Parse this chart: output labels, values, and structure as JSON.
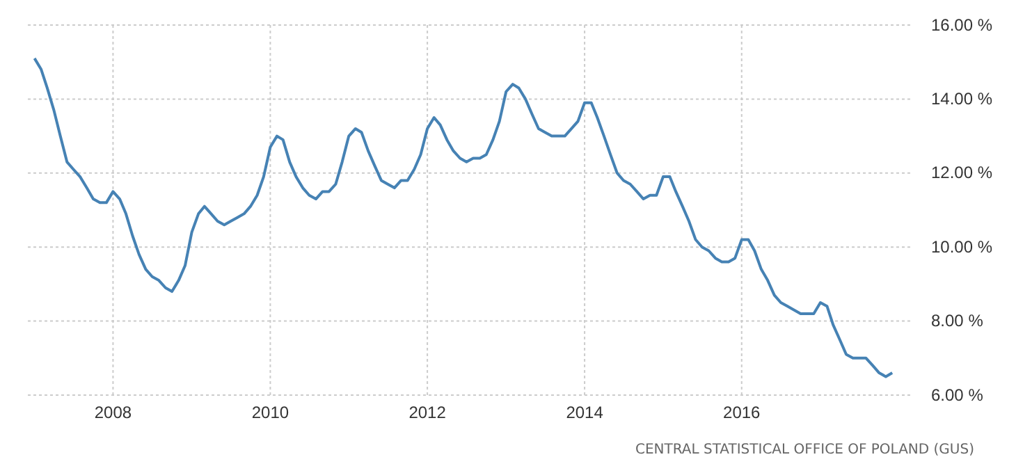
{
  "chart_data": {
    "type": "line",
    "x": [
      "2007-01",
      "2007-02",
      "2007-03",
      "2007-04",
      "2007-05",
      "2007-06",
      "2007-07",
      "2007-08",
      "2007-09",
      "2007-10",
      "2007-11",
      "2007-12",
      "2008-01",
      "2008-02",
      "2008-03",
      "2008-04",
      "2008-05",
      "2008-06",
      "2008-07",
      "2008-08",
      "2008-09",
      "2008-10",
      "2008-11",
      "2008-12",
      "2009-01",
      "2009-02",
      "2009-03",
      "2009-04",
      "2009-05",
      "2009-06",
      "2009-07",
      "2009-08",
      "2009-09",
      "2009-10",
      "2009-11",
      "2009-12",
      "2010-01",
      "2010-02",
      "2010-03",
      "2010-04",
      "2010-05",
      "2010-06",
      "2010-07",
      "2010-08",
      "2010-09",
      "2010-10",
      "2010-11",
      "2010-12",
      "2011-01",
      "2011-02",
      "2011-03",
      "2011-04",
      "2011-05",
      "2011-06",
      "2011-07",
      "2011-08",
      "2011-09",
      "2011-10",
      "2011-11",
      "2011-12",
      "2012-01",
      "2012-02",
      "2012-03",
      "2012-04",
      "2012-05",
      "2012-06",
      "2012-07",
      "2012-08",
      "2012-09",
      "2012-10",
      "2012-11",
      "2012-12",
      "2013-01",
      "2013-02",
      "2013-03",
      "2013-04",
      "2013-05",
      "2013-06",
      "2013-07",
      "2013-08",
      "2013-09",
      "2013-10",
      "2013-11",
      "2013-12",
      "2014-01",
      "2014-02",
      "2014-03",
      "2014-04",
      "2014-05",
      "2014-06",
      "2014-07",
      "2014-08",
      "2014-09",
      "2014-10",
      "2014-11",
      "2014-12",
      "2015-01",
      "2015-02",
      "2015-03",
      "2015-04",
      "2015-05",
      "2015-06",
      "2015-07",
      "2015-08",
      "2015-09",
      "2015-10",
      "2015-11",
      "2015-12",
      "2016-01",
      "2016-02",
      "2016-03",
      "2016-04",
      "2016-05",
      "2016-06",
      "2016-07",
      "2016-08",
      "2016-09",
      "2016-10",
      "2016-11",
      "2016-12",
      "2017-01",
      "2017-02",
      "2017-03",
      "2017-04",
      "2017-05",
      "2017-06",
      "2017-07",
      "2017-08",
      "2017-09",
      "2017-10",
      "2017-11",
      "2017-12"
    ],
    "series": [
      {
        "color": "#4682b4",
        "values": [
          15.1,
          14.8,
          14.3,
          13.7,
          13.0,
          12.3,
          12.1,
          11.9,
          11.6,
          11.3,
          11.2,
          11.2,
          11.5,
          11.3,
          10.9,
          10.3,
          9.8,
          9.4,
          9.2,
          9.1,
          8.9,
          8.8,
          9.1,
          9.5,
          10.4,
          10.9,
          11.1,
          10.9,
          10.7,
          10.6,
          10.7,
          10.8,
          10.9,
          11.1,
          11.4,
          11.9,
          12.7,
          13.0,
          12.9,
          12.3,
          11.9,
          11.6,
          11.4,
          11.3,
          11.5,
          11.5,
          11.7,
          12.3,
          13.0,
          13.2,
          13.1,
          12.6,
          12.2,
          11.8,
          11.7,
          11.6,
          11.8,
          11.8,
          12.1,
          12.5,
          13.2,
          13.5,
          13.3,
          12.9,
          12.6,
          12.4,
          12.3,
          12.4,
          12.4,
          12.5,
          12.9,
          13.4,
          14.2,
          14.4,
          14.3,
          14.0,
          13.6,
          13.2,
          13.1,
          13.0,
          13.0,
          13.0,
          13.2,
          13.4,
          13.9,
          13.9,
          13.5,
          13.0,
          12.5,
          12.0,
          11.8,
          11.7,
          11.5,
          11.3,
          11.4,
          11.4,
          11.9,
          11.9,
          11.5,
          11.1,
          10.7,
          10.2,
          10.0,
          9.9,
          9.7,
          9.6,
          9.6,
          9.7,
          10.2,
          10.2,
          9.9,
          9.4,
          9.1,
          8.7,
          8.5,
          8.4,
          8.3,
          8.2,
          8.2,
          8.2,
          8.5,
          8.4,
          7.9,
          7.5,
          7.1,
          7.0,
          7.0,
          7.0,
          6.8,
          6.6,
          6.5,
          6.6
        ]
      }
    ],
    "xlim": [
      "2006-12-01",
      "2018-03-01"
    ],
    "xticks": [
      {
        "value": "2008-01-01",
        "label": "2008"
      },
      {
        "value": "2010-01-01",
        "label": "2010"
      },
      {
        "value": "2012-01-01",
        "label": "2012"
      },
      {
        "value": "2014-01-01",
        "label": "2014"
      },
      {
        "value": "2016-01-01",
        "label": "2016"
      }
    ],
    "ylim": [
      6,
      16
    ],
    "yticks": [
      {
        "value": 6,
        "label": "6.00 %"
      },
      {
        "value": 8,
        "label": "8.00 %"
      },
      {
        "value": 10,
        "label": "10.00 %"
      },
      {
        "value": 12,
        "label": "12.00 %"
      },
      {
        "value": 14,
        "label": "14.00 %"
      },
      {
        "value": 16,
        "label": "16.00 %"
      }
    ],
    "grid": true,
    "line_style": "solid",
    "annotations": [
      "CENTRAL STATISTICAL OFFICE OF POLAND (GUS)"
    ]
  }
}
